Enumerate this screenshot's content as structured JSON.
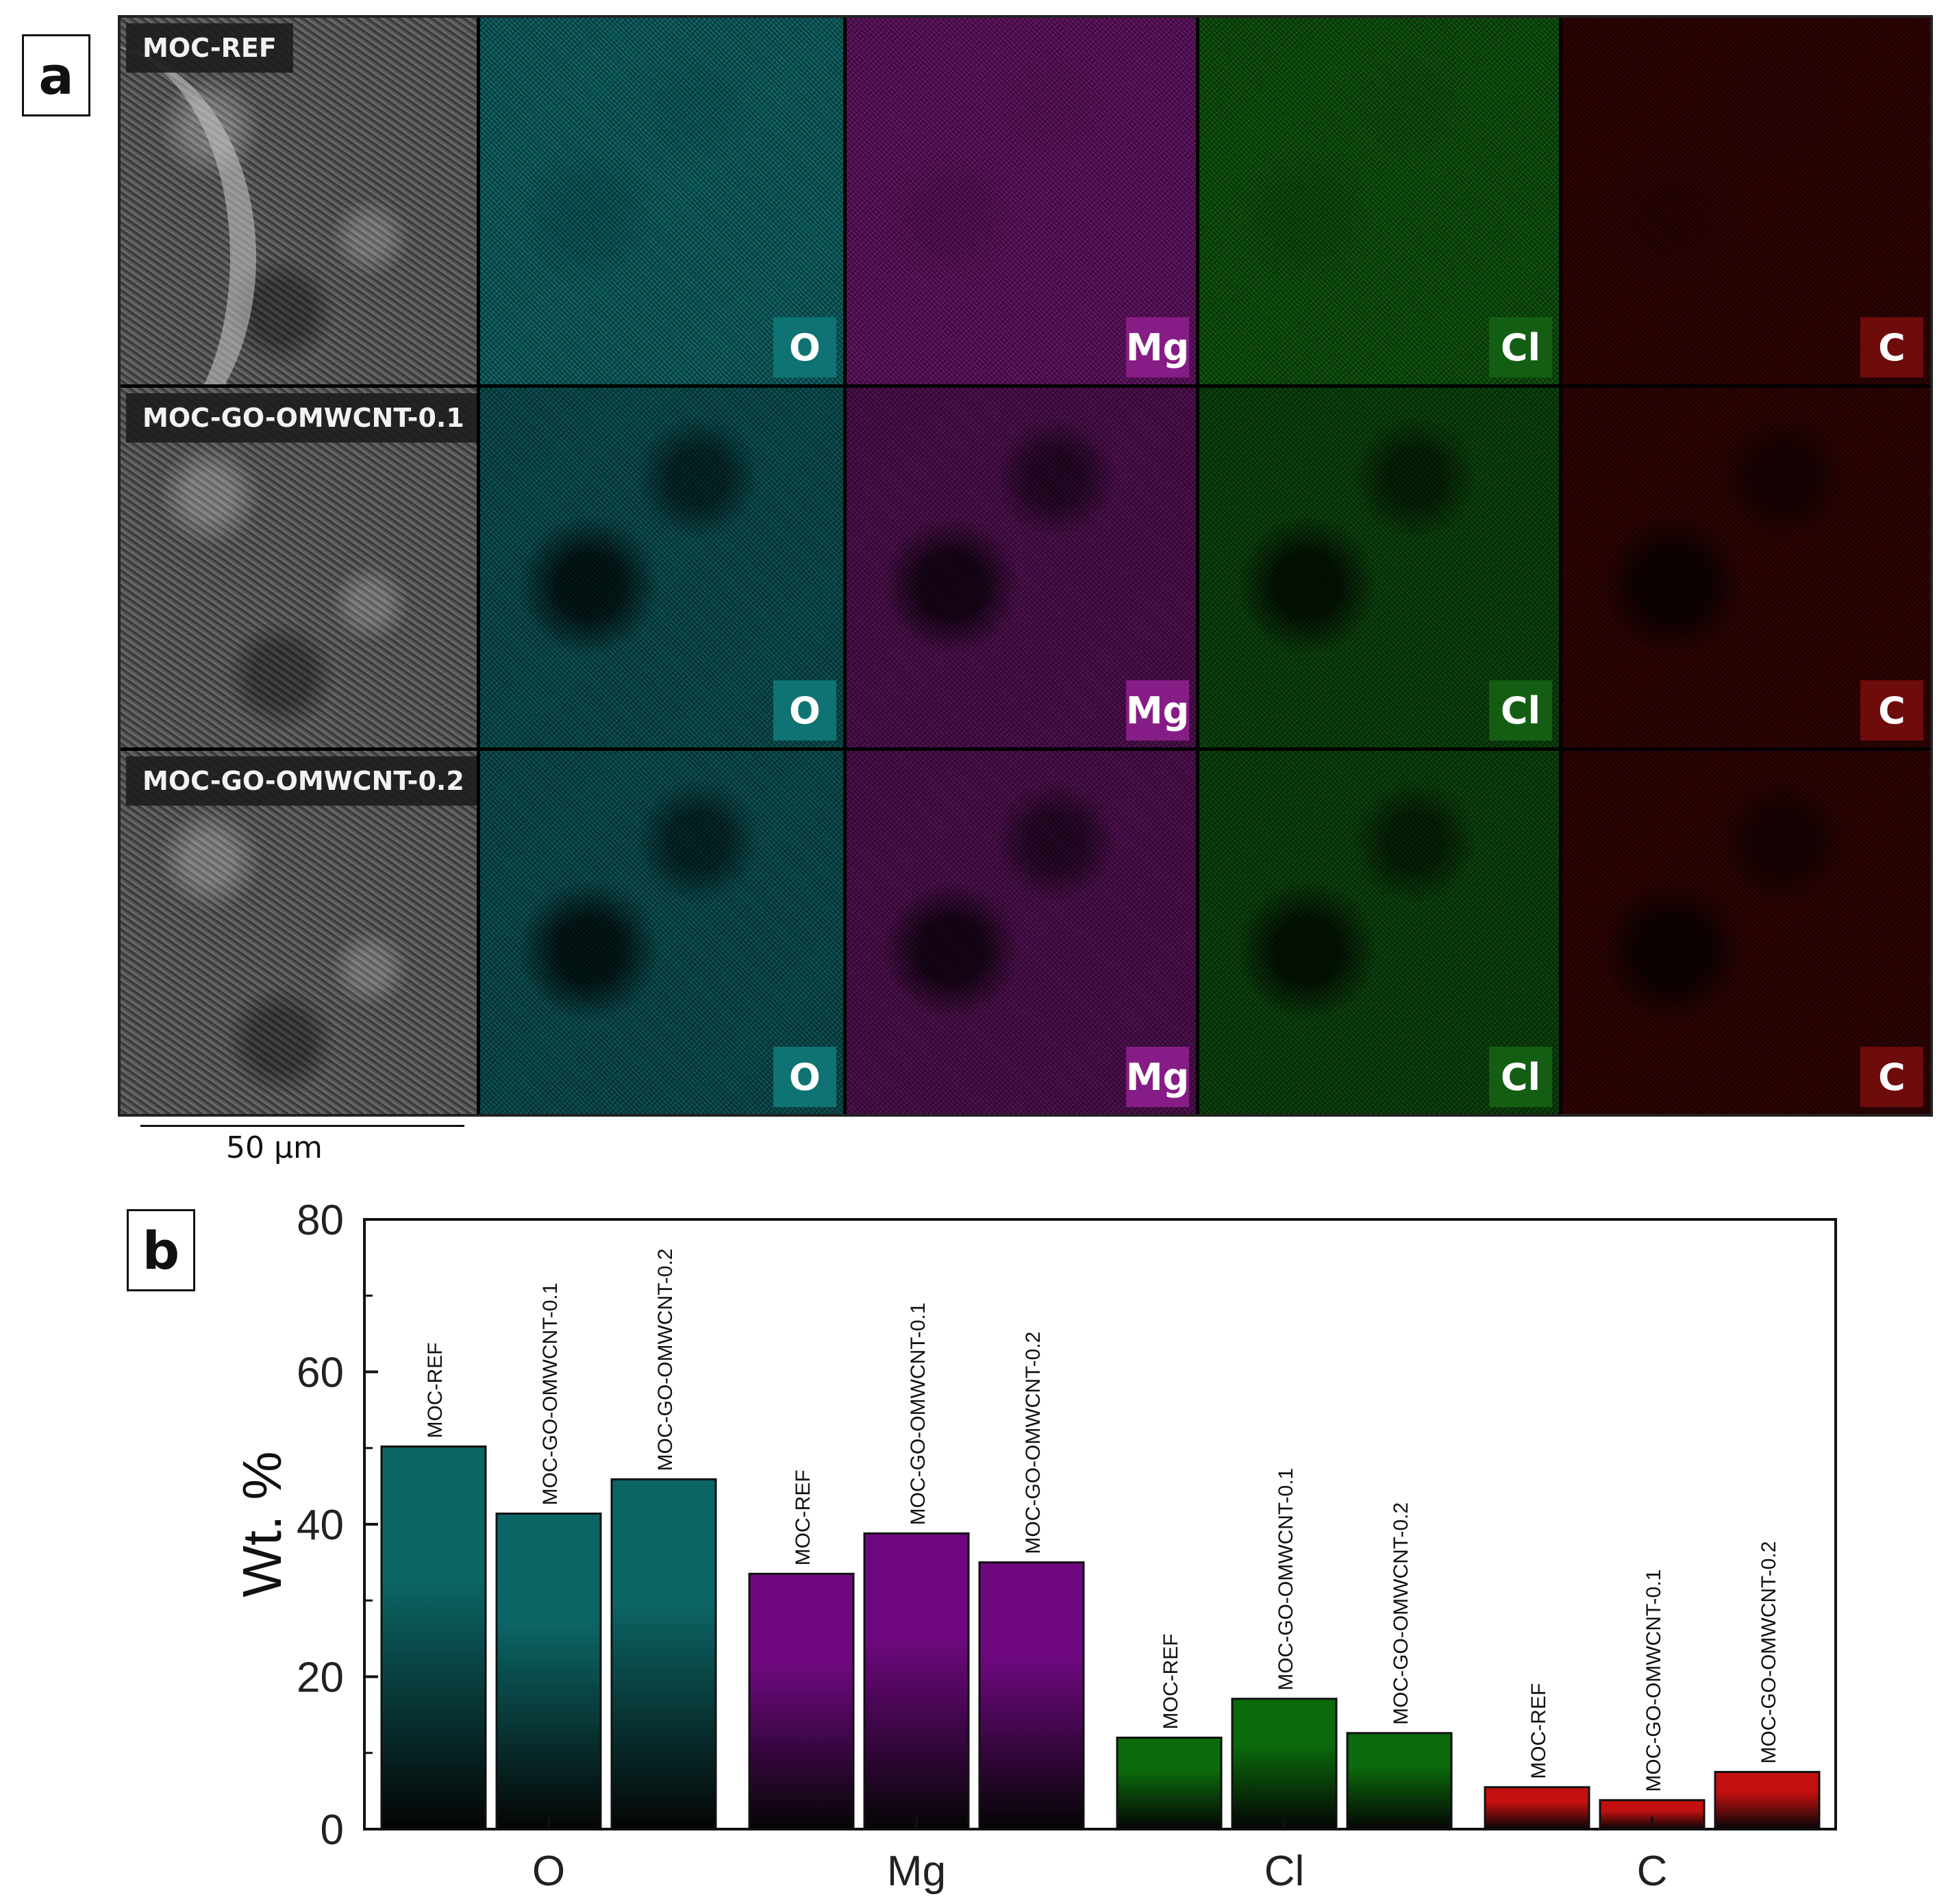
{
  "panel_a": {
    "letter": "a",
    "rows": [
      {
        "sample": "MOC-REF"
      },
      {
        "sample": "MOC-GO-OMWCNT-0.1"
      },
      {
        "sample": "MOC-GO-OMWCNT-0.2"
      }
    ],
    "maps": [
      {
        "element": "O",
        "color": "#1aa3a8",
        "badge_color": "#0f7373"
      },
      {
        "element": "Mg",
        "color": "#a323a3",
        "badge_color": "#861d86"
      },
      {
        "element": "Cl",
        "color": "#1b8a1b",
        "badge_color": "#135e13"
      },
      {
        "element": "C",
        "color": "#b01010",
        "badge_color": "#6e0b0b"
      }
    ],
    "scale_bar": "50 µm"
  },
  "panel_b": {
    "letter": "b"
  },
  "chart_data": {
    "type": "bar",
    "categories": [
      "O",
      "Mg",
      "Cl",
      "C"
    ],
    "series": [
      {
        "name": "MOC-REF",
        "values": [
          50.2,
          33.5,
          12.0,
          5.5
        ]
      },
      {
        "name": "MOC-GO-OMWCNT-0.1",
        "values": [
          41.4,
          38.8,
          17.1,
          3.8
        ]
      },
      {
        "name": "MOC-GO-OMWCNT-0.2",
        "values": [
          45.9,
          35.0,
          12.6,
          7.5
        ]
      }
    ],
    "category_colors": {
      "O": "#0c6565",
      "Mg": "#6f0880",
      "Cl": "#0b6a0b",
      "C": "#c41010"
    },
    "ylabel": "Wt. %",
    "xlabel": "",
    "ylim": [
      0,
      80
    ],
    "yticks": [
      0,
      20,
      40,
      60,
      80
    ],
    "grid": false,
    "legend": "none (series names printed above bars)"
  }
}
